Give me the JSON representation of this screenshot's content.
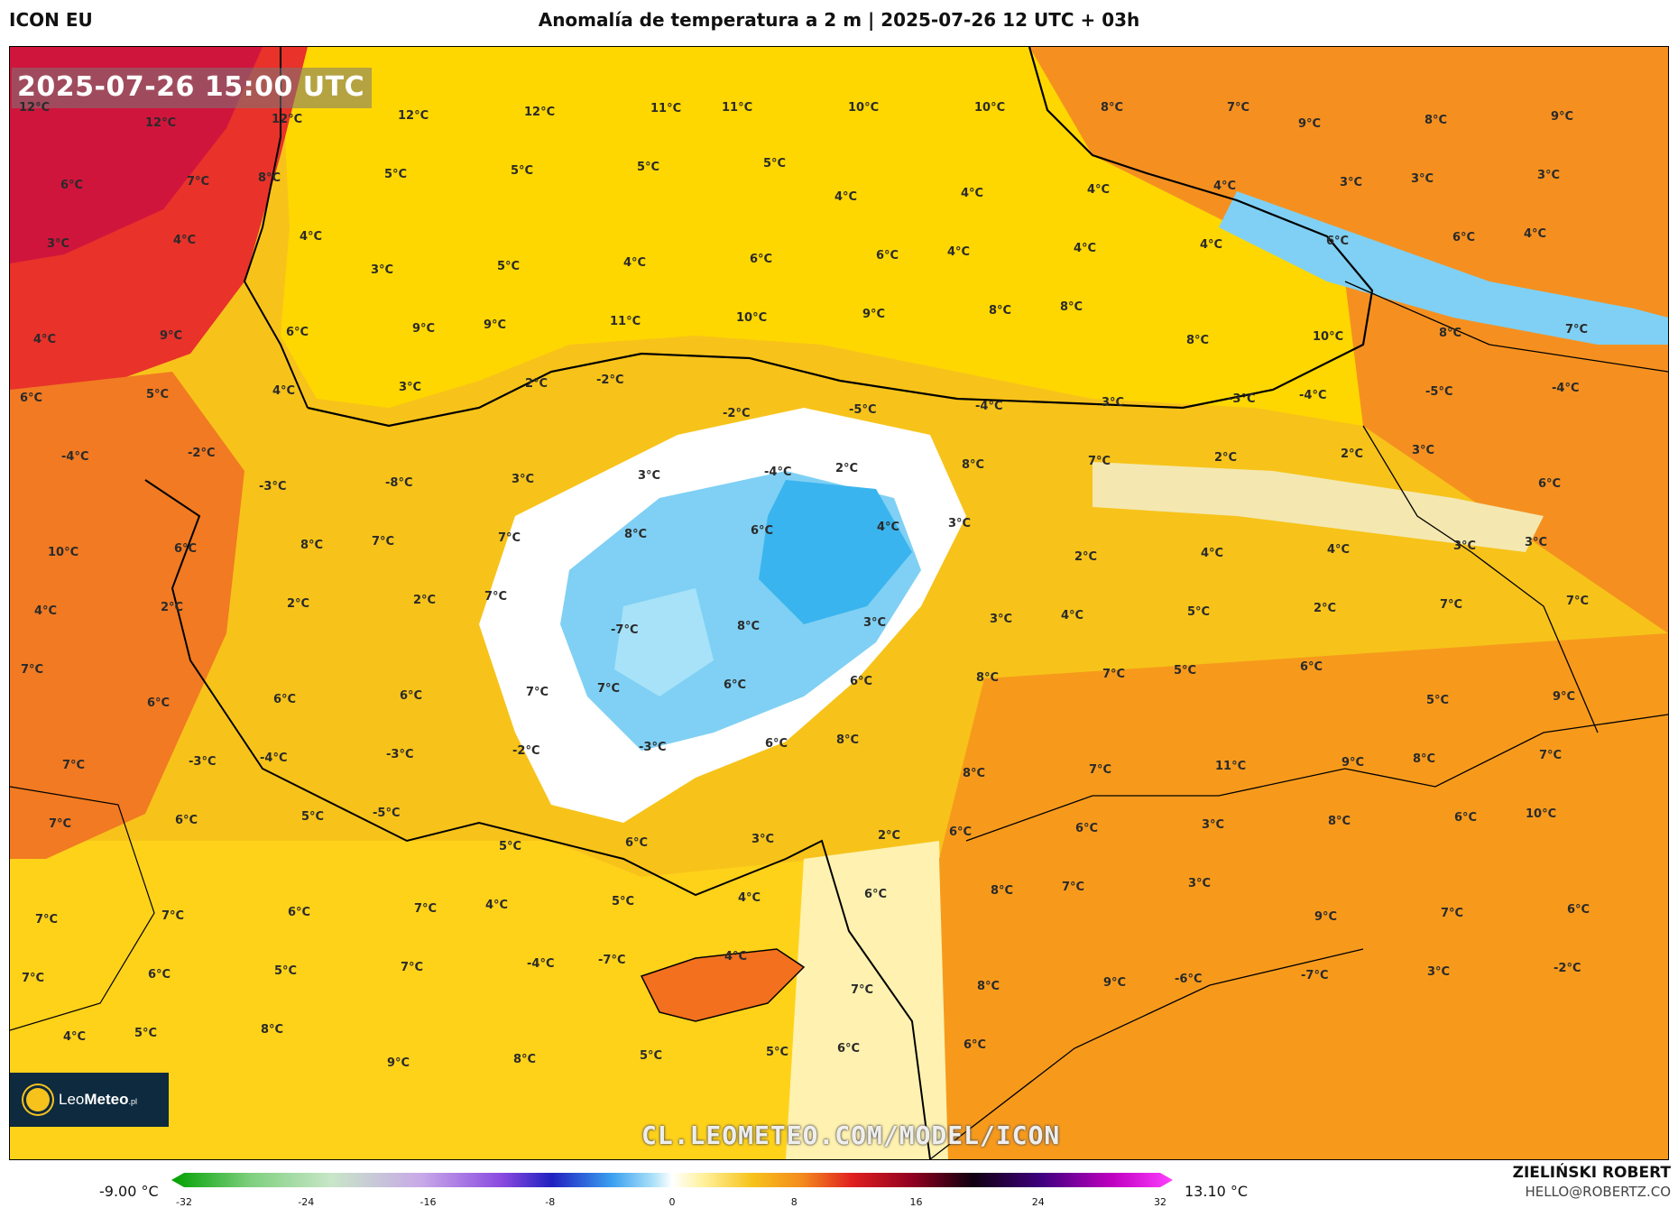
{
  "header": {
    "model": "ICON EU",
    "title": "Anomalía de temperatura a 2 m | 2025-07-26 12 UTC + 03h"
  },
  "map": {
    "timestamp": "2025-07-26 15:00 UTC",
    "watermark": "CL.LEOMETEO.COM/MODEL/ICON",
    "logo": {
      "part1": "Leo",
      "part2": "Meteo",
      "suffix": ".pl"
    },
    "labels": [
      "12°C",
      "12°C",
      "12°C",
      "12°C",
      "12°C",
      "11°C",
      "11°C",
      "10°C",
      "10°C",
      "8°C",
      "7°C",
      "9°C",
      "8°C",
      "9°C",
      "6°C",
      "7°C",
      "8°C",
      "5°C",
      "5°C",
      "5°C",
      "5°C",
      "4°C",
      "4°C",
      "4°C",
      "4°C",
      "3°C",
      "3°C",
      "3°C",
      "3°C",
      "4°C",
      "4°C",
      "3°C",
      "5°C",
      "4°C",
      "6°C",
      "6°C",
      "4°C",
      "4°C",
      "4°C",
      "6°C",
      "6°C",
      "4°C",
      "4°C",
      "9°C",
      "6°C",
      "9°C",
      "9°C",
      "11°C",
      "10°C",
      "9°C",
      "8°C",
      "8°C",
      "8°C",
      "10°C",
      "8°C",
      "7°C",
      "6°C",
      "5°C",
      "4°C",
      "3°C",
      "2°C",
      "-2°C",
      "-2°C",
      "-5°C",
      "-4°C",
      "3°C",
      "-3°C",
      "-4°C",
      "-5°C",
      "-4°C",
      "-4°C",
      "-2°C",
      "-3°C",
      "-8°C",
      "3°C",
      "3°C",
      "-4°C",
      "2°C",
      "8°C",
      "7°C",
      "2°C",
      "2°C",
      "3°C",
      "6°C",
      "10°C",
      "6°C",
      "8°C",
      "7°C",
      "7°C",
      "8°C",
      "6°C",
      "4°C",
      "3°C",
      "2°C",
      "4°C",
      "4°C",
      "3°C",
      "3°C",
      "4°C",
      "2°C",
      "2°C",
      "2°C",
      "7°C",
      "-7°C",
      "8°C",
      "3°C",
      "3°C",
      "4°C",
      "5°C",
      "2°C",
      "7°C",
      "7°C",
      "7°C",
      "6°C",
      "6°C",
      "6°C",
      "7°C",
      "7°C",
      "6°C",
      "6°C",
      "8°C",
      "7°C",
      "5°C",
      "6°C",
      "5°C",
      "9°C",
      "7°C",
      "-3°C",
      "-4°C",
      "-3°C",
      "-2°C",
      "-3°C",
      "6°C",
      "8°C",
      "8°C",
      "7°C",
      "11°C",
      "9°C",
      "8°C",
      "7°C",
      "7°C",
      "6°C",
      "5°C",
      "-5°C",
      "5°C",
      "6°C",
      "3°C",
      "2°C",
      "6°C",
      "6°C",
      "3°C",
      "8°C",
      "6°C",
      "10°C",
      "7°C",
      "7°C",
      "6°C",
      "7°C",
      "4°C",
      "5°C",
      "4°C",
      "6°C",
      "8°C",
      "7°C",
      "3°C",
      "9°C",
      "7°C",
      "6°C",
      "7°C",
      "6°C",
      "5°C",
      "7°C",
      "-4°C",
      "-7°C",
      "4°C",
      "7°C",
      "8°C",
      "9°C",
      "-6°C",
      "-7°C",
      "3°C",
      "-2°C",
      "4°C",
      "5°C",
      "8°C",
      "9°C",
      "8°C",
      "5°C",
      "5°C",
      "6°C",
      "6°C"
    ]
  },
  "colorbar": {
    "min_label": "-9.00 °C",
    "max_label": "13.10 °C",
    "ticks": [
      "-32",
      "-24",
      "-16",
      "-8",
      "0",
      "8",
      "16",
      "24",
      "32"
    ],
    "range": [
      -32,
      32
    ]
  },
  "footer": {
    "author": "ZIELIŃSKI ROBERT",
    "email": "HELLO@ROBERTZ.CO"
  }
}
